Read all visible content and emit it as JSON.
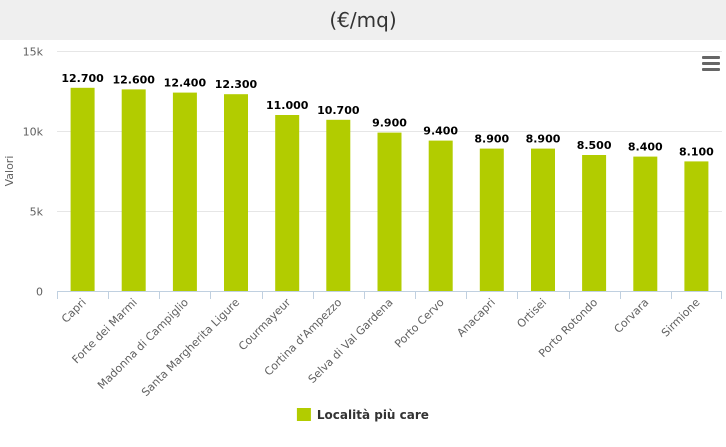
{
  "header": {
    "title": "(€/mq)"
  },
  "menu": {
    "icon": "hamburger-menu-icon"
  },
  "colors": {
    "bar": "#b2cc00",
    "axis": "#c0d0e0",
    "grid": "#e6e6e6",
    "header_bg": "#efefef"
  },
  "chart_data": {
    "type": "bar",
    "title": "(€/mq)",
    "xlabel": "",
    "ylabel": "Valori",
    "ylim": [
      0,
      15000
    ],
    "yticks": [
      0,
      5000,
      10000,
      15000
    ],
    "ytick_labels": [
      "0",
      "5k",
      "10k",
      "15k"
    ],
    "grid": true,
    "legend_position": "bottom-center",
    "categories": [
      "Capri",
      "Forte dei Marmi",
      "Madonna di Campiglio",
      "Santa Margherita Ligure",
      "Courmayeur",
      "Cortina d'Ampezzo",
      "Selva di Val Gardena",
      "Porto Cervo",
      "Anacapri",
      "Ortisei",
      "Porto Rotondo",
      "Corvara",
      "Sirmione"
    ],
    "series": [
      {
        "name": "Località più care",
        "values": [
          12700,
          12600,
          12400,
          12300,
          11000,
          10700,
          9900,
          9400,
          8900,
          8900,
          8500,
          8400,
          8100
        ],
        "labels": [
          "12.700",
          "12.600",
          "12.400",
          "12.300",
          "11.000",
          "10.700",
          "9.900",
          "9.400",
          "8.900",
          "8.900",
          "8.500",
          "8.400",
          "8.100"
        ]
      }
    ]
  }
}
